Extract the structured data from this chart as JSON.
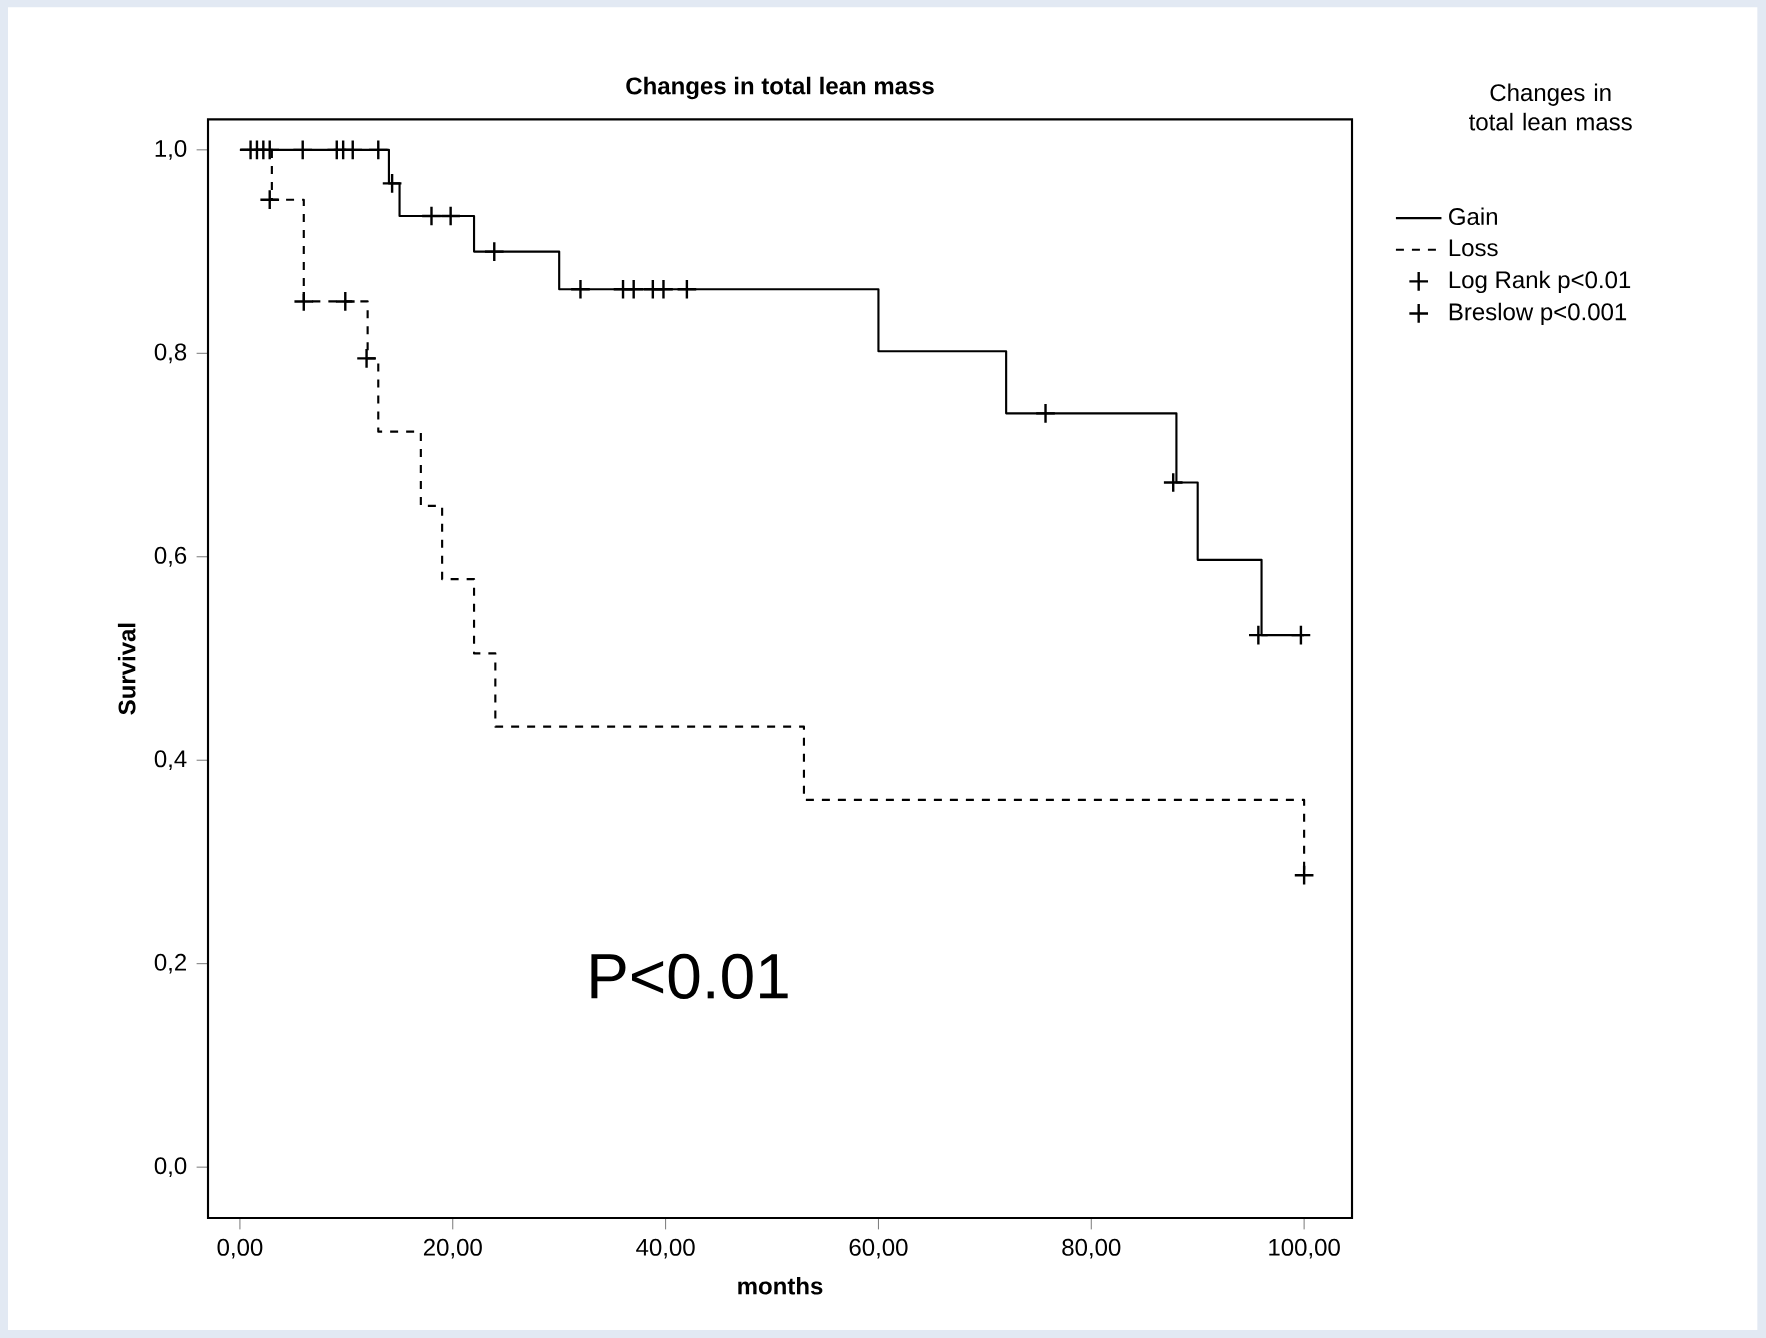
{
  "chart_data": {
    "type": "step",
    "title": "Changes in total lean mass",
    "xlabel": "months",
    "ylabel": "Survival",
    "legend_title": "Changes in total lean mass",
    "legend": "right",
    "grid": false,
    "xlim": [
      -3,
      104.5
    ],
    "ylim": [
      -0.05,
      1.03
    ],
    "xticks": [
      {
        "value": 0,
        "label": "0,00"
      },
      {
        "value": 20,
        "label": "20,00"
      },
      {
        "value": 40,
        "label": "40,00"
      },
      {
        "value": 60,
        "label": "60,00"
      },
      {
        "value": 80,
        "label": "80,00"
      },
      {
        "value": 100,
        "label": "100,00"
      }
    ],
    "yticks": [
      {
        "value": 0,
        "label": "0,0"
      },
      {
        "value": 0.2,
        "label": "0,2"
      },
      {
        "value": 0.4,
        "label": "0,4"
      },
      {
        "value": 0.6,
        "label": "0,6"
      },
      {
        "value": 0.8,
        "label": "0,8"
      },
      {
        "value": 1,
        "label": "1,0"
      }
    ],
    "annotations": [
      "P<0.01"
    ],
    "series": [
      {
        "name": "Gain",
        "color": "#000000",
        "line_style": "solid",
        "marker": "none",
        "x": [
          0,
          14,
          15,
          22,
          30,
          60,
          72,
          88,
          90,
          96,
          100
        ],
        "values": [
          1,
          0.967,
          0.935,
          0.9,
          0.863,
          0.802,
          0.741,
          0.673,
          0.597,
          0.523,
          0.523
        ]
      },
      {
        "name": "Loss",
        "color": "#000000",
        "line_style": "dashed",
        "marker": "none",
        "x": [
          0,
          3,
          6,
          12,
          13,
          17,
          19,
          22,
          24,
          53,
          100
        ],
        "values": [
          1,
          0.951,
          0.851,
          0.795,
          0.723,
          0.65,
          0.578,
          0.505,
          0.433,
          0.361,
          0.287
        ]
      },
      {
        "name": "Log Rank p<0.01",
        "type": "scatter",
        "color": "#000000",
        "marker": "cross",
        "x": [
          1,
          1.6,
          2.2,
          2.8,
          5.9,
          9.1,
          9.7,
          10.6,
          13,
          14.3,
          18,
          19.8,
          23.9,
          32,
          36,
          37,
          38.8,
          39.8,
          42,
          75.7,
          87.7,
          95.7,
          99.7
        ],
        "values": [
          1,
          1,
          1,
          1,
          1,
          1,
          1,
          1,
          1,
          0.967,
          0.935,
          0.935,
          0.9,
          0.863,
          0.863,
          0.863,
          0.863,
          0.863,
          0.863,
          0.741,
          0.673,
          0.523,
          0.523
        ]
      },
      {
        "name": "Breslow p<0.001",
        "type": "scatter",
        "color": "#000000",
        "marker": "cross",
        "x": [
          2.8,
          6,
          9.9,
          11.9,
          100
        ],
        "values": [
          0.951,
          0.851,
          0.851,
          0.795,
          0.287
        ]
      }
    ]
  }
}
